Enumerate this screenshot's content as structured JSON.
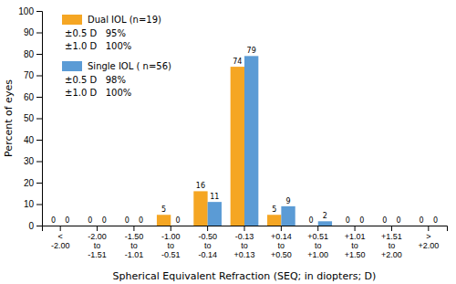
{
  "chart_data": {
    "type": "bar",
    "xlabel": "Spherical Equivalent Refraction (SEQ; in diopters; D)",
    "ylabel": "Percent of eyes",
    "categories": [
      "<\n-2.00",
      "-2.00\nto\n-1.51",
      "-1.50\nto\n-1.01",
      "-1.00\nto\n-0.51",
      "-0.50\nto\n-0.14",
      "-0.13\nto\n+0.13",
      "+0.14\nto\n+0.50",
      "+0.51\nto\n+1.00",
      "+1.01\nto\n+1.50",
      "+1.51\nto\n+2.00",
      ">\n+2.00"
    ],
    "series": [
      {
        "name": "Dual IOL (n=19)",
        "color": "#F5A623",
        "values": [
          0,
          0,
          0,
          5,
          16,
          74,
          5,
          0,
          0,
          0,
          0
        ],
        "annotations": [
          "±0.5 D   95%",
          "±1.0 D   100%"
        ]
      },
      {
        "name": "Single IOL ( n=56)",
        "color": "#5B9BD5",
        "values": [
          0,
          0,
          0,
          0,
          11,
          79,
          9,
          2,
          0,
          0,
          0
        ],
        "annotations": [
          "±0.5 D   98%",
          "±1.0 D   100%"
        ]
      }
    ],
    "ylim": [
      0,
      100
    ],
    "yticks": [
      0,
      10,
      20,
      30,
      40,
      50,
      60,
      70,
      80,
      90,
      100
    ],
    "data_labels": true,
    "legend": "upper left",
    "grid": false
  }
}
